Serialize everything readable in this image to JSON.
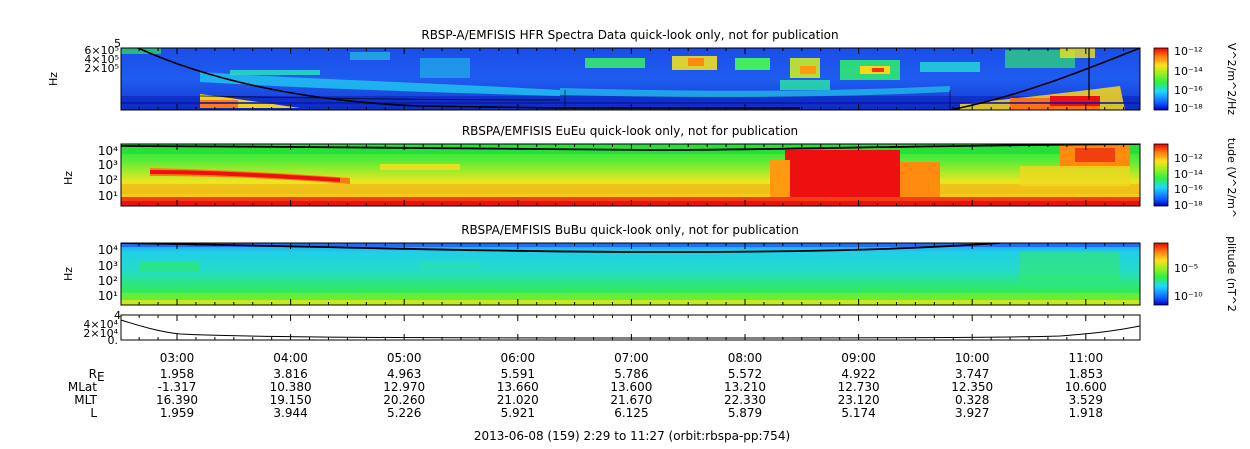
{
  "panels": [
    {
      "id": "hfr",
      "title": "RBSP-A/EMFISIS  HFR Spectra Data quick-look only, not for publication",
      "ylabel": "Hz",
      "yticks": [
        "6×10⁵",
        "4×10⁵",
        "2×10⁵"
      ],
      "ytick_extra": "5",
      "colorbar_label": "V^2/m^2/Hz",
      "colorbar_ticks": [
        "10⁻¹²",
        "10⁻¹⁴",
        "10⁻¹⁶",
        "10⁻¹⁸"
      ]
    },
    {
      "id": "eueu",
      "title": "RBSPA/EMFISIS  EuEu quick-look only, not for publication",
      "ylabel": "Hz",
      "yticks": [
        "10⁴",
        "10³",
        "10²",
        "10¹"
      ],
      "colorbar_label": "tude (V^2/m^",
      "colorbar_ticks": [
        "10⁻¹²",
        "10⁻¹⁴",
        "10⁻¹⁶",
        "10⁻¹⁸"
      ]
    },
    {
      "id": "bubu",
      "title": "RBSPA/EMFISIS  BuBu quick-look only, not for publication",
      "ylabel": "Hz",
      "yticks": [
        "10⁴",
        "10³",
        "10²",
        "10¹"
      ],
      "colorbar_label": "plitude (nT^2",
      "colorbar_ticks": [
        "10⁻⁵",
        "10⁻¹⁰"
      ]
    },
    {
      "id": "line",
      "yticks": [
        "4×10⁴",
        "2×10⁴",
        "0."
      ],
      "ytick_extra": "4"
    }
  ],
  "chart_data": {
    "type": "heatmap",
    "x_ticks": [
      "03:00",
      "04:00",
      "05:00",
      "06:00",
      "07:00",
      "08:00",
      "09:00",
      "10:00",
      "11:00"
    ],
    "ephemeris": [
      {
        "label": "R",
        "sub": "E",
        "values": [
          "1.958",
          "3.816",
          "4.963",
          "5.591",
          "5.786",
          "5.572",
          "4.922",
          "3.747",
          "1.853"
        ]
      },
      {
        "label": "MLat",
        "values": [
          "-1.317",
          "10.380",
          "12.970",
          "13.660",
          "13.600",
          "13.210",
          "12.730",
          "12.350",
          "10.600"
        ]
      },
      {
        "label": "MLT",
        "values": [
          "16.390",
          "19.150",
          "20.260",
          "21.020",
          "21.670",
          "22.330",
          "23.120",
          "0.328",
          "3.529"
        ]
      },
      {
        "label": "L",
        "values": [
          "1.959",
          "3.944",
          "5.226",
          "5.921",
          "6.125",
          "5.879",
          "5.174",
          "3.927",
          "1.918"
        ]
      }
    ],
    "footer": "2013-06-08 (159) 2:29 to 11:27 (orbit:rbspa-pp:754)"
  },
  "colors": {
    "dark_blue": "#0a1fb4",
    "blue": "#1f5cf0",
    "cyan": "#21d6e8",
    "green": "#2ee84a",
    "yellow": "#f5e61a",
    "orange": "#ff8a10",
    "red": "#ee1010"
  }
}
